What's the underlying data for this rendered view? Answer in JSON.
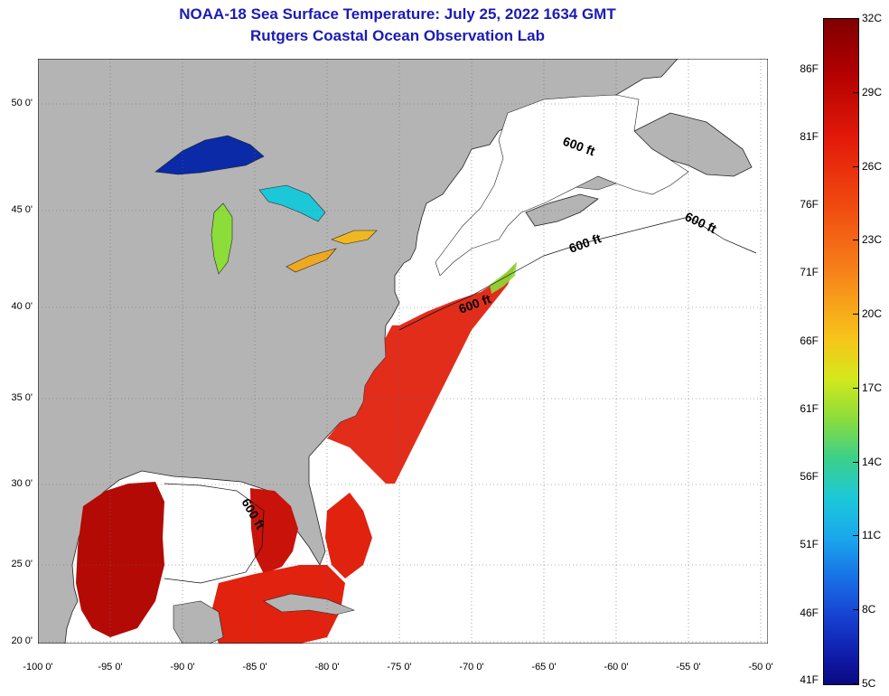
{
  "title": "NOAA-18 Sea Surface Temperature:  July 25, 2022 1634 GMT",
  "subtitle": "Rutgers Coastal Ocean Observation Lab",
  "map": {
    "latitude_labels": [
      "50 0'",
      "45 0'",
      "40 0'",
      "35 0'",
      "30 0'",
      "25 0'",
      "20 0'"
    ],
    "longitude_labels": [
      "-100 0'",
      "-95 0'",
      "-90 0'",
      "-85 0'",
      "-80 0'",
      "-75 0'",
      "-70 0'",
      "-65 0'",
      "-60 0'",
      "-55 0'",
      "-50 0'"
    ],
    "isobath_label": "600 ft",
    "colors": {
      "land": "#b4b4b4",
      "no_data": "#ffffff",
      "warm_sst": "#e0220f",
      "hot_sst": "#b30a05",
      "cold_lake": "#0a2aa8"
    }
  },
  "colorbar": {
    "fahrenheit": [
      "86F",
      "81F",
      "76F",
      "71F",
      "66F",
      "61F",
      "56F",
      "51F",
      "46F",
      "41F"
    ],
    "celsius": [
      "32C",
      "29C",
      "26C",
      "23C",
      "20C",
      "17C",
      "14C",
      "11C",
      "8C",
      "5C"
    ]
  }
}
